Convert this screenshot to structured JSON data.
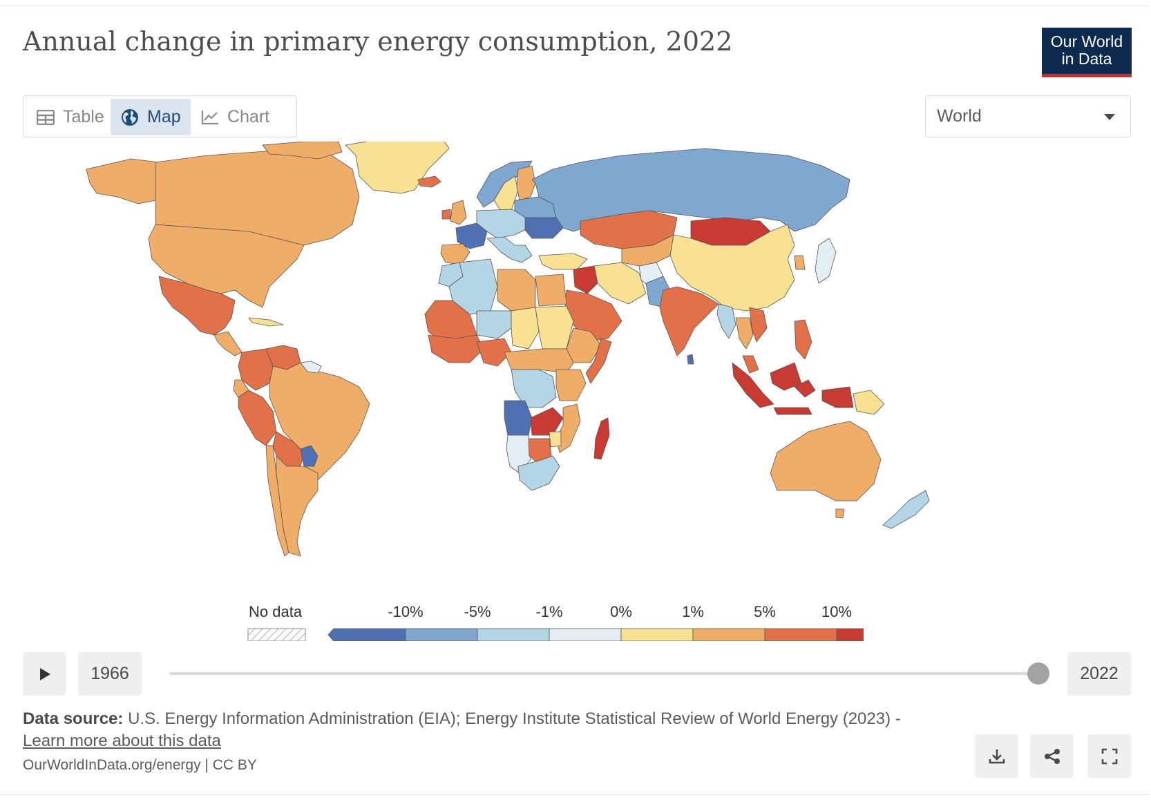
{
  "header": {
    "title": "Annual change in primary energy consumption, 2022",
    "logo_line1": "Our World",
    "logo_line2": "in Data"
  },
  "tabs": [
    {
      "label": "Table",
      "icon": "table-icon",
      "active": false
    },
    {
      "label": "Map",
      "icon": "globe-icon",
      "active": true
    },
    {
      "label": "Chart",
      "icon": "line-chart-icon",
      "active": false
    }
  ],
  "region_select": {
    "value": "World"
  },
  "legend": {
    "no_data_label": "No data",
    "tick_labels": [
      "-10%",
      "-5%",
      "-1%",
      "0%",
      "1%",
      "5%",
      "10%"
    ],
    "bins": [
      {
        "range": "< -10%",
        "color": "#4f70b3"
      },
      {
        "range": "-10% to -5%",
        "color": "#7fa7cf"
      },
      {
        "range": "-5% to -1%",
        "color": "#b3d5e6"
      },
      {
        "range": "-1% to 0%",
        "color": "#e2eef4"
      },
      {
        "range": "0% to 1%",
        "color": "#f9e193"
      },
      {
        "range": "1% to 5%",
        "color": "#f0ad68"
      },
      {
        "range": "5% to 10%",
        "color": "#e2714a"
      },
      {
        "range": "> 10%",
        "color": "#c83a32"
      }
    ]
  },
  "chart_data": {
    "type": "choropleth",
    "title": "Annual change in primary energy consumption, 2022",
    "year": 2022,
    "legend_placement": "bottom",
    "regions": [
      {
        "name": "Canada",
        "bin": "1% to 5%"
      },
      {
        "name": "United States",
        "bin": "1% to 5%"
      },
      {
        "name": "Greenland",
        "bin": "0% to 1%"
      },
      {
        "name": "Mexico",
        "bin": "5% to 10%"
      },
      {
        "name": "Venezuela",
        "bin": "5% to 10%"
      },
      {
        "name": "Colombia",
        "bin": "5% to 10%"
      },
      {
        "name": "Peru",
        "bin": "5% to 10%"
      },
      {
        "name": "Brazil",
        "bin": "1% to 5%"
      },
      {
        "name": "Bolivia",
        "bin": "5% to 10%"
      },
      {
        "name": "Paraguay",
        "bin": "< -10%"
      },
      {
        "name": "Argentina",
        "bin": "1% to 5%"
      },
      {
        "name": "Chile",
        "bin": "1% to 5%"
      },
      {
        "name": "Iceland",
        "bin": "5% to 10%"
      },
      {
        "name": "Norway",
        "bin": "-10% to -5%"
      },
      {
        "name": "Sweden",
        "bin": "0% to 1%"
      },
      {
        "name": "Finland",
        "bin": "1% to 5%"
      },
      {
        "name": "United Kingdom",
        "bin": "1% to 5%"
      },
      {
        "name": "Ireland",
        "bin": "5% to 10%"
      },
      {
        "name": "France",
        "bin": "< -10%"
      },
      {
        "name": "Spain",
        "bin": "1% to 5%"
      },
      {
        "name": "Germany",
        "bin": "-5% to -1%"
      },
      {
        "name": "Poland",
        "bin": "-5% to -1%"
      },
      {
        "name": "Ukraine",
        "bin": "< -10%"
      },
      {
        "name": "Italy",
        "bin": "-5% to -1%"
      },
      {
        "name": "Russia",
        "bin": "-10% to -5%"
      },
      {
        "name": "Kazakhstan",
        "bin": "5% to 10%"
      },
      {
        "name": "Mongolia",
        "bin": "> 10%"
      },
      {
        "name": "China",
        "bin": "0% to 1%"
      },
      {
        "name": "Japan",
        "bin": "-1% to 0%"
      },
      {
        "name": "South Korea",
        "bin": "1% to 5%"
      },
      {
        "name": "India",
        "bin": "5% to 10%"
      },
      {
        "name": "Pakistan",
        "bin": "-10% to -5%"
      },
      {
        "name": "Afghanistan",
        "bin": "-1% to 0%"
      },
      {
        "name": "Iran",
        "bin": "0% to 1%"
      },
      {
        "name": "Iraq",
        "bin": "> 10%"
      },
      {
        "name": "Saudi Arabia",
        "bin": "5% to 10%"
      },
      {
        "name": "Turkey",
        "bin": "0% to 1%"
      },
      {
        "name": "Egypt",
        "bin": "1% to 5%"
      },
      {
        "name": "Algeria",
        "bin": "-5% to -1%"
      },
      {
        "name": "Libya",
        "bin": "1% to 5%"
      },
      {
        "name": "Morocco",
        "bin": "-5% to -1%"
      },
      {
        "name": "Mali",
        "bin": "5% to 10%"
      },
      {
        "name": "Niger",
        "bin": "-5% to -1%"
      },
      {
        "name": "Chad",
        "bin": "0% to 1%"
      },
      {
        "name": "Sudan",
        "bin": "0% to 1%"
      },
      {
        "name": "Ethiopia",
        "bin": "1% to 5%"
      },
      {
        "name": "Somalia",
        "bin": "5% to 10%"
      },
      {
        "name": "Nigeria",
        "bin": "5% to 10%"
      },
      {
        "name": "DR Congo",
        "bin": "-5% to -1%"
      },
      {
        "name": "Tanzania",
        "bin": "1% to 5%"
      },
      {
        "name": "Angola",
        "bin": "< -10%"
      },
      {
        "name": "Zambia",
        "bin": "> 10%"
      },
      {
        "name": "Namibia",
        "bin": "-1% to 0%"
      },
      {
        "name": "Botswana",
        "bin": "5% to 10%"
      },
      {
        "name": "South Africa",
        "bin": "-5% to -1%"
      },
      {
        "name": "Mozambique",
        "bin": "1% to 5%"
      },
      {
        "name": "Madagascar",
        "bin": "> 10%"
      },
      {
        "name": "Sri Lanka",
        "bin": "< -10%"
      },
      {
        "name": "Myanmar",
        "bin": "-5% to -1%"
      },
      {
        "name": "Thailand",
        "bin": "1% to 5%"
      },
      {
        "name": "Vietnam",
        "bin": "5% to 10%"
      },
      {
        "name": "Malaysia",
        "bin": "5% to 10%"
      },
      {
        "name": "Indonesia",
        "bin": "> 10%"
      },
      {
        "name": "Philippines",
        "bin": "5% to 10%"
      },
      {
        "name": "Papua New Guinea",
        "bin": "0% to 1%"
      },
      {
        "name": "Australia",
        "bin": "1% to 5%"
      },
      {
        "name": "New Zealand",
        "bin": "-5% to -1%"
      }
    ]
  },
  "timeline": {
    "start_year": "1966",
    "end_year": "2022",
    "progress": 1.0
  },
  "footer": {
    "source_label": "Data source:",
    "source_text": "U.S. Energy Information Administration (EIA); Energy Institute Statistical Review of World Energy (2023) - ",
    "learn_more": "Learn more about this data",
    "credit": "OurWorldInData.org/energy | CC BY"
  },
  "actions": [
    {
      "name": "download",
      "icon": "download-icon"
    },
    {
      "name": "share",
      "icon": "share-icon"
    },
    {
      "name": "fullscreen",
      "icon": "fullscreen-icon"
    }
  ]
}
